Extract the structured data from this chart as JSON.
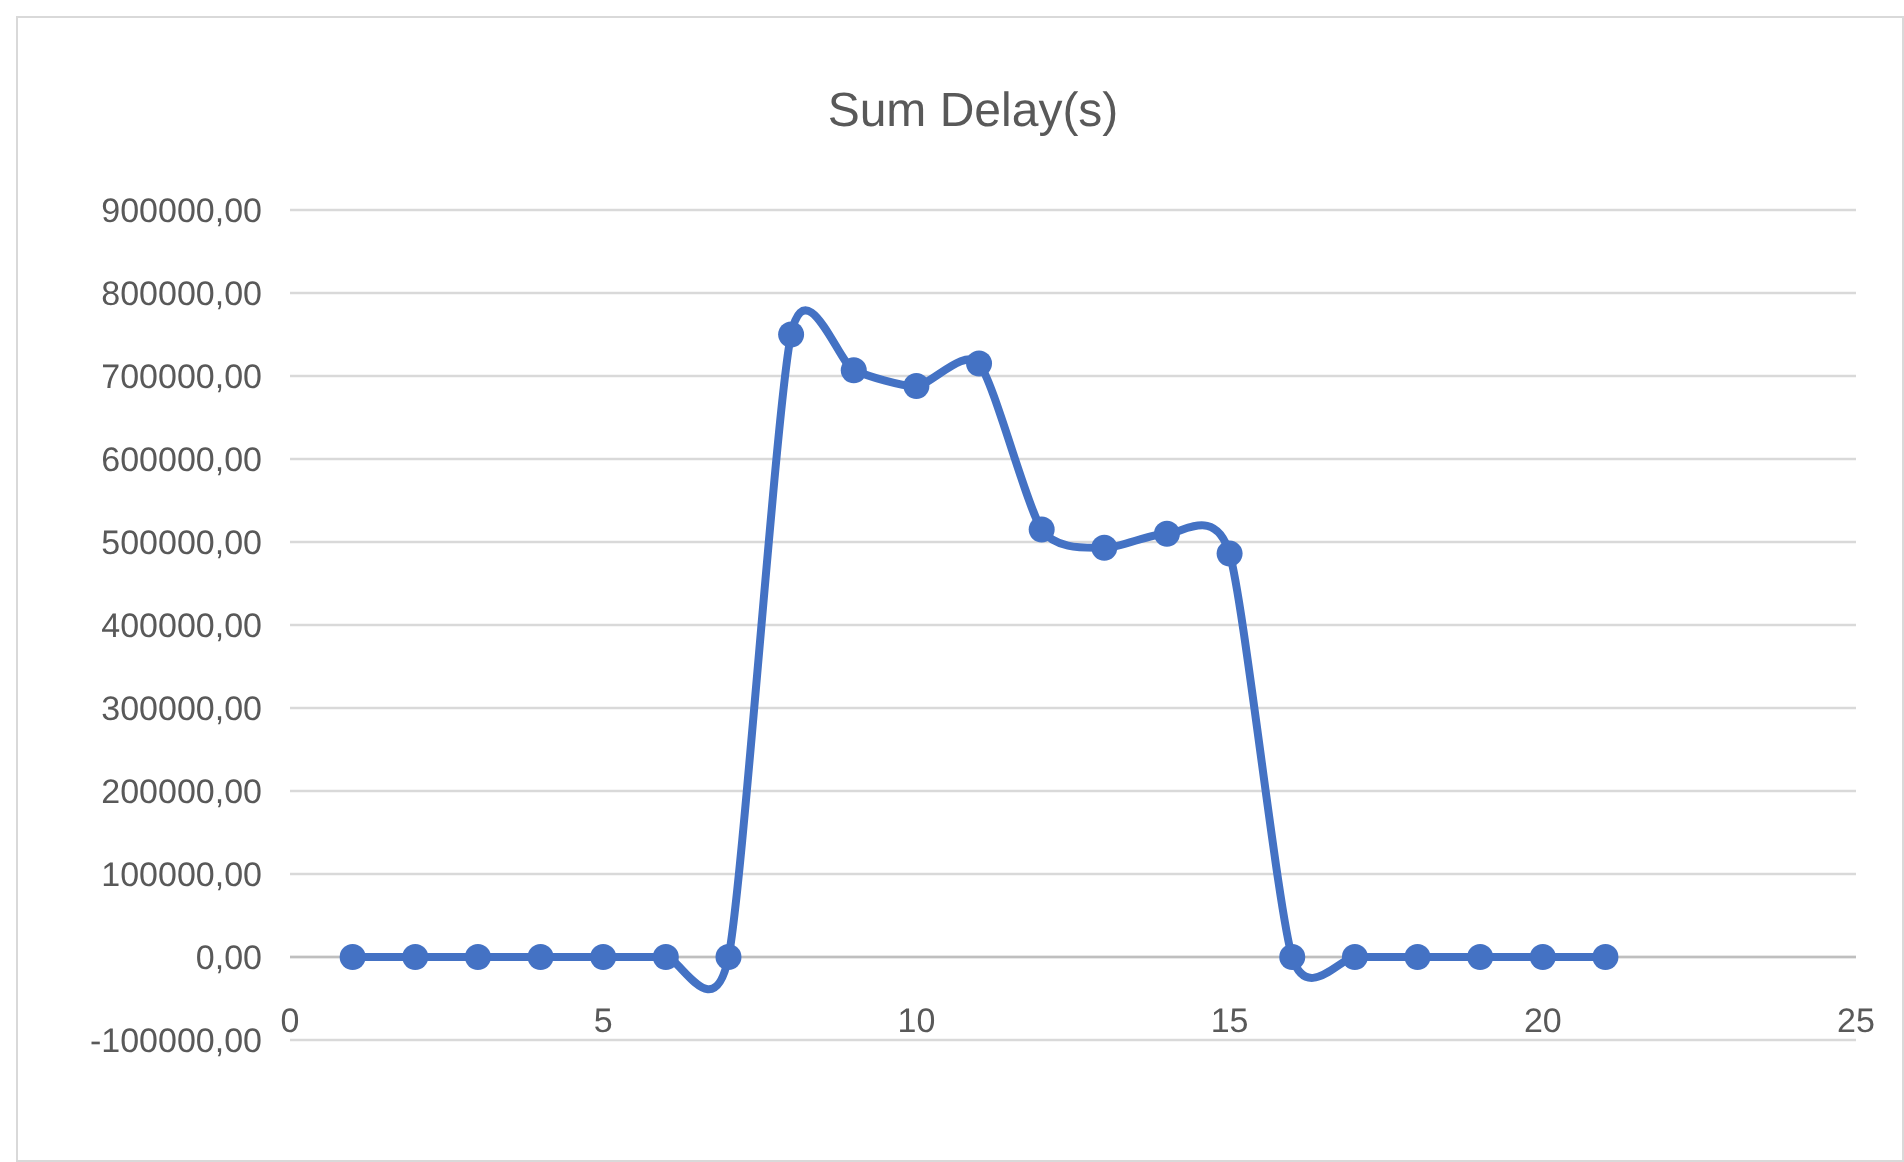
{
  "chart_data": {
    "type": "line",
    "title": "Sum Delay(s)",
    "x": [
      1,
      2,
      3,
      4,
      5,
      6,
      7,
      8,
      9,
      10,
      11,
      12,
      13,
      14,
      15,
      16,
      17,
      18,
      19,
      20,
      21
    ],
    "series": [
      {
        "color": "#4472c4",
        "values": [
          0,
          0,
          0,
          0,
          0,
          0,
          0,
          750000,
          707000,
          688000,
          715000,
          515000,
          493000,
          510000,
          486000,
          0,
          0,
          0,
          0,
          0,
          0
        ]
      }
    ],
    "xlim": [
      0,
      25
    ],
    "xticks": [
      0,
      5,
      10,
      15,
      20,
      25
    ],
    "ylim": [
      -100000,
      900000
    ],
    "yticks": [
      {
        "value": -100000,
        "label": "-100000,00"
      },
      {
        "value": 0,
        "label": "0,00"
      },
      {
        "value": 100000,
        "label": "100000,00"
      },
      {
        "value": 200000,
        "label": "200000,00"
      },
      {
        "value": 300000,
        "label": "300000,00"
      },
      {
        "value": 400000,
        "label": "400000,00"
      },
      {
        "value": 500000,
        "label": "500000,00"
      },
      {
        "value": 600000,
        "label": "600000,00"
      },
      {
        "value": 700000,
        "label": "700000,00"
      },
      {
        "value": 800000,
        "label": "800000,00"
      },
      {
        "value": 900000,
        "label": "900000,00"
      }
    ],
    "grid": "y",
    "marker": "circle",
    "line_style": "solid"
  }
}
